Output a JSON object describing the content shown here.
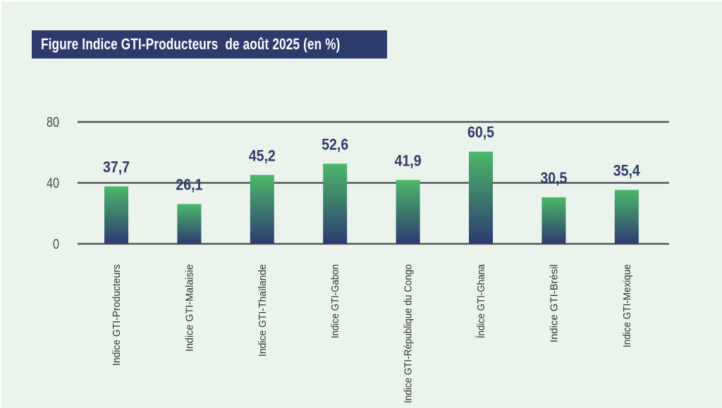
{
  "title": "Figure Indice GTI-Producteurs  de août 2025 (en %)",
  "colors": {
    "background": "#eaf4ec",
    "title_bar": "#2d3a6c",
    "bar_top": "#4cb868",
    "bar_bottom": "#2d3a72",
    "data_label": "#2d3a6c",
    "gridline": "#555555"
  },
  "chart_data": {
    "type": "bar",
    "title": "Figure Indice GTI-Producteurs  de août 2025 (en %)",
    "xlabel": "",
    "ylabel": "",
    "ylim": [
      0,
      80
    ],
    "yticks": [
      0,
      40,
      80
    ],
    "ytick_labels": [
      "0",
      "40",
      "80"
    ],
    "grid": true,
    "legend": "none",
    "categories": [
      "Indice GTI-Producteurs",
      "Indice GTI-Malaisie",
      "Indice GTI-Thaïlande",
      "Indice GTI-Gabon",
      "Indice GTI-République du Congo",
      "Índice GTI-Ghana",
      "Indice GTI-Brésil",
      "Indice GTI-Mexique"
    ],
    "values": [
      37.7,
      26.1,
      45.2,
      52.6,
      41.9,
      60.5,
      30.5,
      35.4
    ],
    "data_labels": [
      "37,7",
      "26,1",
      "45,2",
      "52,6",
      "41,9",
      "60,5",
      "30,5",
      "35,4"
    ]
  }
}
